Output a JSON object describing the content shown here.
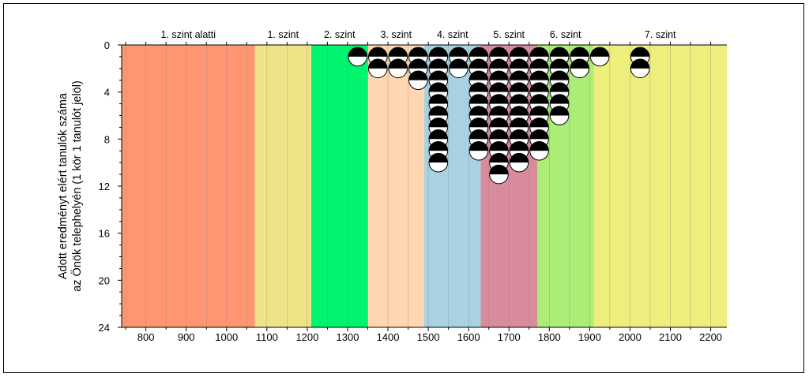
{
  "chart_data": {
    "type": "scatter",
    "title": "",
    "ylabel_lines": [
      "Adott eredményt elért tanulók száma",
      "az Önök telephelyén (1 kör 1 tanulót jelöl)"
    ],
    "xlabel": "",
    "xlim": [
      740,
      2240
    ],
    "ylim": [
      0,
      24
    ],
    "y_inverted": true,
    "x_ticks": [
      800,
      900,
      1000,
      1100,
      1200,
      1300,
      1400,
      1500,
      1600,
      1700,
      1800,
      1900,
      2000,
      2100,
      2200
    ],
    "y_ticks": [
      0,
      4,
      8,
      12,
      16,
      20,
      24
    ],
    "bands": [
      {
        "label": "1. szint alatti",
        "from": 740,
        "to": 1070,
        "color": "#FF9671"
      },
      {
        "label": "1. szint",
        "from": 1070,
        "to": 1210,
        "color": "#EDE387"
      },
      {
        "label": "2. szint",
        "from": 1210,
        "to": 1350,
        "color": "#00F46D"
      },
      {
        "label": "3. szint",
        "from": 1350,
        "to": 1490,
        "color": "#FFD6B0"
      },
      {
        "label": "4. szint",
        "from": 1490,
        "to": 1630,
        "color": "#A8D2E2"
      },
      {
        "label": "5. szint",
        "from": 1630,
        "to": 1770,
        "color": "#D98B9C"
      },
      {
        "label": "6. szint",
        "from": 1770,
        "to": 1910,
        "color": "#ACED78"
      },
      {
        "label": "7. szint",
        "from": 1910,
        "to": 2240,
        "color": "#EEEE7C"
      }
    ],
    "marker_style": "half-black-half-white circle",
    "columns": [
      {
        "x": 1325,
        "count": 1
      },
      {
        "x": 1375,
        "count": 2
      },
      {
        "x": 1425,
        "count": 2
      },
      {
        "x": 1475,
        "count": 3
      },
      {
        "x": 1525,
        "count": 10
      },
      {
        "x": 1575,
        "count": 2
      },
      {
        "x": 1625,
        "count": 9
      },
      {
        "x": 1675,
        "count": 11
      },
      {
        "x": 1725,
        "count": 10
      },
      {
        "x": 1775,
        "count": 9
      },
      {
        "x": 1825,
        "count": 6
      },
      {
        "x": 1875,
        "count": 2
      },
      {
        "x": 1925,
        "count": 1
      },
      {
        "x": 2025,
        "count": 2
      }
    ]
  }
}
